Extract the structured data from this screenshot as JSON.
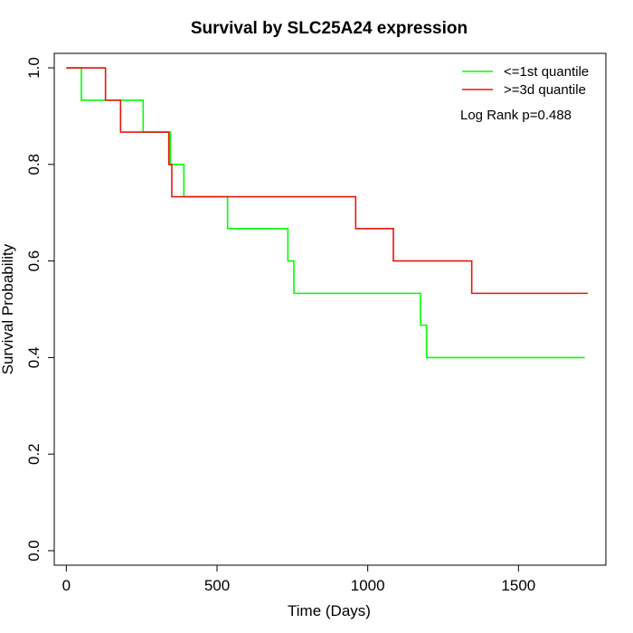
{
  "chart_data": {
    "type": "line",
    "title": "Survival by SLC25A24 expression",
    "xlabel": "Time (Days)",
    "ylabel": "Survival Probability",
    "xlim": [
      -40,
      1790
    ],
    "ylim": [
      -0.03,
      1.03
    ],
    "xticks": [
      0,
      500,
      1000,
      1500
    ],
    "yticks": [
      0.0,
      0.2,
      0.4,
      0.6,
      0.8,
      1.0
    ],
    "xtick_labels": [
      "0",
      "500",
      "1000",
      "1500"
    ],
    "ytick_labels": [
      "0.0",
      "0.2",
      "0.4",
      "0.6",
      "0.8",
      "1.0"
    ],
    "grid": false,
    "legend_position": "top-right",
    "annotation": "Log Rank p=0.488",
    "series": [
      {
        "name": "<=1st quantile",
        "color": "#00ff00",
        "step": true,
        "x": [
          0,
          50,
          255,
          345,
          390,
          535,
          735,
          755,
          1175,
          1195,
          1720
        ],
        "y": [
          1.0,
          0.933,
          0.867,
          0.8,
          0.733,
          0.667,
          0.6,
          0.533,
          0.467,
          0.4,
          0.4
        ]
      },
      {
        "name": ">=3d quantile",
        "color": "#e8160c",
        "step": true,
        "x": [
          0,
          130,
          180,
          340,
          350,
          960,
          1085,
          1345,
          1730
        ],
        "y": [
          1.0,
          0.933,
          0.867,
          0.8,
          0.733,
          0.667,
          0.6,
          0.533,
          0.533
        ]
      }
    ]
  }
}
